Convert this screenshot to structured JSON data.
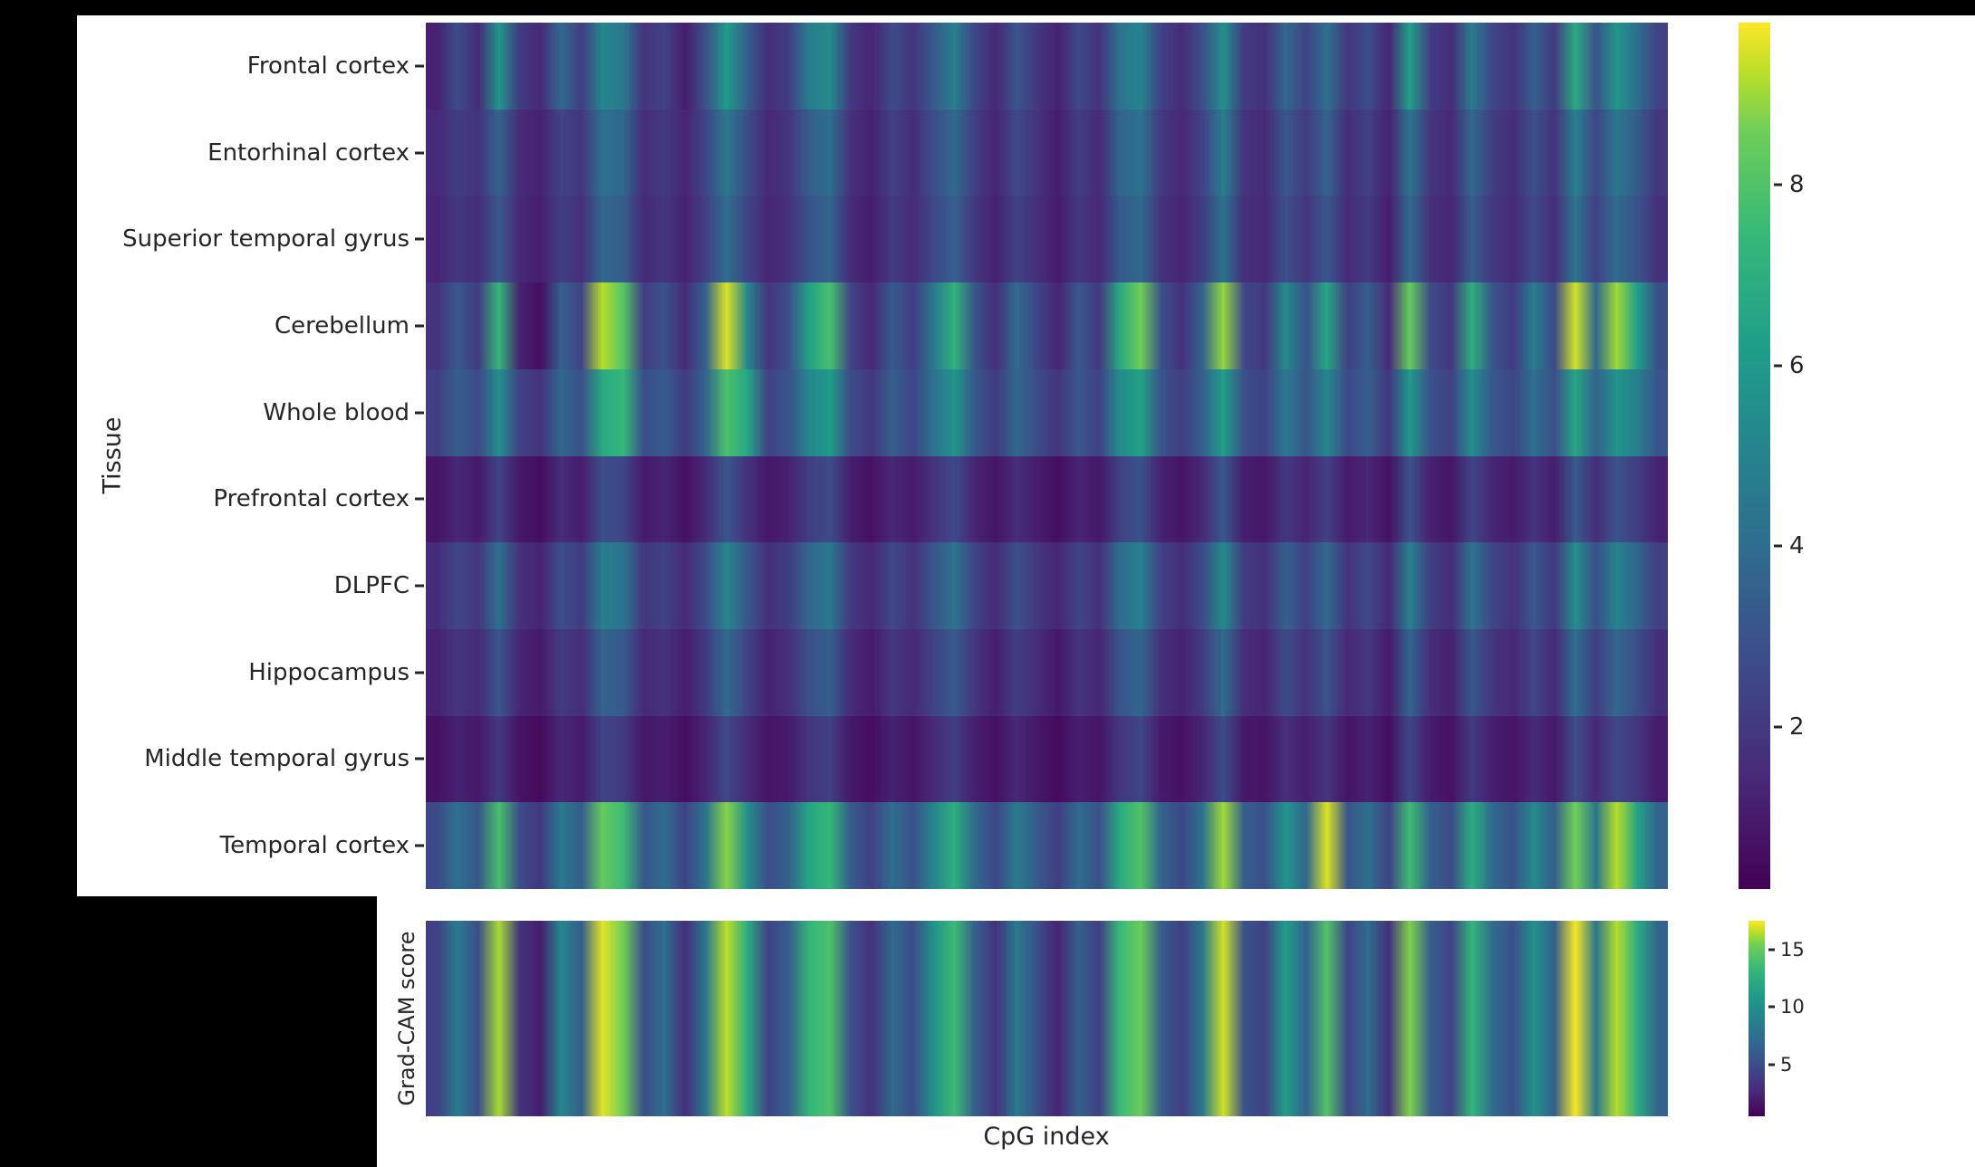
{
  "figure": {
    "background": "#ffffff",
    "page_background": "#000000",
    "text_color": "#262626"
  },
  "colormap_stops": [
    [
      0.0,
      "#440154"
    ],
    [
      0.125,
      "#482878"
    ],
    [
      0.25,
      "#3e4989"
    ],
    [
      0.375,
      "#31688e"
    ],
    [
      0.5,
      "#26828e"
    ],
    [
      0.625,
      "#1f9e89"
    ],
    [
      0.75,
      "#35b779"
    ],
    [
      0.875,
      "#6ece58"
    ],
    [
      0.9375,
      "#b5de2b"
    ],
    [
      1.0,
      "#fde725"
    ]
  ],
  "chart_data": [
    {
      "type": "heatmap",
      "name": "tissue-by-cpg-heatmap",
      "title": "",
      "xlabel": "",
      "ylabel": "Tissue",
      "colormap": "viridis",
      "vmin": 0.2,
      "vmax": 9.8,
      "colorbar_ticks": [
        8,
        6,
        4,
        2
      ],
      "rows": [
        "Frontal cortex",
        "Entorhinal cortex",
        "Superior temporal gyrus",
        "Cerebellum",
        "Whole blood",
        "Prefrontal cortex",
        "DLPFC",
        "Hippocampus",
        "Middle temporal gyrus",
        "Temporal cortex"
      ],
      "n_columns": 60,
      "x_tick_labels": [],
      "values": [
        [
          1.2,
          2.8,
          1.5,
          5.8,
          2.1,
          1.4,
          3.9,
          2.2,
          5.2,
          4.6,
          1.8,
          2.4,
          1.1,
          2.9,
          6.1,
          3.4,
          1.6,
          2.2,
          4.8,
          5.4,
          2.0,
          1.3,
          2.7,
          1.9,
          3.3,
          4.9,
          2.5,
          1.4,
          3.1,
          2.0,
          1.2,
          2.6,
          1.8,
          4.4,
          5.1,
          2.3,
          1.5,
          2.9,
          5.6,
          2.1,
          1.7,
          3.8,
          2.4,
          4.2,
          1.9,
          2.8,
          1.3,
          6.3,
          2.2,
          1.6,
          4.7,
          2.5,
          1.8,
          3.5,
          2.1,
          6.8,
          3.0,
          5.9,
          4.1,
          2.3
        ],
        [
          1.4,
          2.2,
          1.8,
          3.6,
          1.5,
          1.2,
          2.4,
          1.9,
          4.2,
          3.8,
          1.6,
          2.1,
          1.3,
          2.5,
          4.6,
          2.8,
          1.4,
          1.9,
          3.4,
          4.1,
          1.7,
          1.2,
          2.3,
          1.6,
          2.8,
          3.9,
          2.2,
          1.3,
          2.6,
          1.8,
          1.1,
          2.2,
          1.5,
          3.7,
          4.3,
          2.0,
          1.4,
          2.4,
          4.8,
          1.8,
          1.5,
          3.2,
          2.1,
          3.6,
          1.6,
          2.3,
          1.2,
          4.4,
          1.9,
          1.4,
          3.8,
          2.2,
          1.6,
          2.9,
          1.8,
          4.9,
          2.5,
          4.5,
          3.3,
          1.9
        ],
        [
          1.3,
          2.0,
          1.6,
          3.2,
          1.4,
          1.1,
          2.2,
          1.7,
          3.8,
          3.4,
          1.5,
          1.9,
          1.2,
          2.3,
          4.1,
          2.5,
          1.3,
          1.8,
          3.0,
          3.6,
          1.6,
          1.1,
          2.1,
          1.5,
          2.6,
          3.5,
          2.0,
          1.2,
          2.4,
          1.7,
          1.0,
          2.0,
          1.4,
          3.3,
          3.9,
          1.8,
          1.3,
          2.2,
          4.3,
          1.7,
          1.4,
          2.9,
          1.9,
          3.2,
          1.5,
          2.1,
          1.1,
          3.9,
          1.7,
          1.3,
          3.4,
          2.0,
          1.5,
          2.6,
          1.6,
          4.4,
          2.3,
          4.0,
          3.0,
          1.7
        ],
        [
          1.8,
          3.2,
          2.1,
          7.4,
          1.2,
          0.6,
          3.5,
          2.4,
          9.2,
          8.1,
          2.2,
          3.0,
          1.5,
          3.6,
          9.5,
          5.2,
          1.9,
          2.8,
          6.4,
          7.8,
          2.4,
          1.4,
          3.3,
          2.2,
          4.6,
          7.2,
          3.1,
          1.6,
          4.0,
          2.5,
          1.3,
          3.2,
          2.0,
          6.8,
          8.6,
          2.9,
          1.7,
          3.6,
          8.9,
          2.6,
          2.0,
          5.4,
          3.0,
          6.6,
          2.3,
          3.4,
          1.5,
          8.4,
          2.7,
          1.9,
          7.0,
          3.1,
          2.1,
          4.8,
          2.6,
          9.4,
          3.8,
          9.0,
          6.2,
          2.8
        ],
        [
          2.2,
          3.4,
          2.6,
          5.6,
          2.3,
          1.8,
          3.8,
          2.9,
          6.8,
          7.4,
          2.8,
          3.3,
          2.1,
          3.7,
          7.9,
          6.6,
          2.4,
          3.0,
          5.2,
          6.1,
          2.7,
          2.0,
          3.4,
          2.5,
          4.2,
          5.8,
          3.2,
          2.1,
          3.8,
          2.7,
          1.9,
          3.2,
          2.4,
          5.4,
          6.4,
          3.0,
          2.2,
          3.5,
          6.2,
          2.8,
          2.4,
          4.6,
          3.1,
          5.2,
          2.6,
          3.4,
          2.0,
          6.0,
          2.9,
          2.3,
          5.5,
          3.2,
          2.5,
          4.2,
          2.8,
          6.6,
          3.6,
          5.8,
          4.8,
          3.0
        ],
        [
          0.8,
          1.4,
          1.0,
          2.4,
          0.9,
          0.6,
          1.6,
          1.1,
          2.8,
          2.5,
          1.0,
          1.3,
          0.7,
          1.5,
          3.1,
          1.8,
          0.9,
          1.2,
          2.2,
          2.7,
          1.1,
          0.7,
          1.4,
          1.0,
          1.8,
          2.6,
          1.3,
          0.8,
          1.6,
          1.1,
          0.6,
          1.3,
          0.9,
          2.4,
          2.9,
          1.2,
          0.8,
          1.5,
          3.2,
          1.1,
          0.9,
          2.0,
          1.3,
          2.3,
          1.0,
          1.4,
          0.7,
          2.9,
          1.2,
          0.8,
          2.5,
          1.3,
          1.0,
          1.8,
          1.1,
          3.3,
          1.6,
          3.0,
          2.2,
          1.2
        ],
        [
          1.6,
          2.5,
          1.9,
          4.2,
          1.7,
          1.3,
          2.8,
          2.1,
          4.8,
          4.4,
          1.9,
          2.4,
          1.5,
          2.7,
          5.2,
          3.2,
          1.7,
          2.2,
          3.8,
          4.5,
          2.0,
          1.4,
          2.6,
          1.8,
          3.1,
          4.3,
          2.4,
          1.5,
          2.9,
          2.0,
          1.3,
          2.5,
          1.7,
          4.1,
          4.9,
          2.3,
          1.6,
          2.7,
          5.4,
          2.1,
          1.7,
          3.5,
          2.3,
          3.9,
          1.8,
          2.6,
          1.4,
          5.0,
          2.2,
          1.6,
          4.3,
          2.5,
          1.8,
          3.2,
          2.0,
          5.5,
          2.8,
          5.1,
          3.7,
          2.2
        ],
        [
          1.2,
          1.9,
          1.5,
          3.1,
          1.3,
          1.0,
          2.1,
          1.6,
          3.6,
          3.3,
          1.4,
          1.8,
          1.1,
          2.1,
          3.9,
          2.4,
          1.2,
          1.7,
          2.9,
          3.4,
          1.5,
          1.0,
          2.0,
          1.4,
          2.4,
          3.3,
          1.9,
          1.1,
          2.2,
          1.6,
          0.9,
          1.9,
          1.3,
          3.1,
          3.7,
          1.7,
          1.2,
          2.1,
          4.0,
          1.6,
          1.3,
          2.7,
          1.8,
          3.0,
          1.4,
          2.0,
          1.0,
          3.7,
          1.6,
          1.2,
          3.2,
          1.9,
          1.4,
          2.5,
          1.5,
          4.1,
          2.2,
          3.8,
          2.8,
          1.6
        ],
        [
          0.7,
          1.2,
          0.9,
          2.0,
          0.8,
          0.5,
          1.4,
          1.0,
          2.4,
          2.1,
          0.9,
          1.1,
          0.6,
          1.3,
          2.6,
          1.5,
          0.8,
          1.0,
          1.9,
          2.3,
          0.9,
          0.6,
          1.2,
          0.8,
          1.5,
          2.2,
          1.1,
          0.7,
          1.4,
          0.9,
          0.5,
          1.1,
          0.8,
          2.0,
          2.5,
          1.0,
          0.7,
          1.3,
          2.7,
          0.9,
          0.8,
          1.7,
          1.1,
          1.9,
          0.8,
          1.2,
          0.6,
          2.5,
          1.0,
          0.7,
          2.1,
          1.1,
          0.8,
          1.5,
          0.9,
          2.8,
          1.4,
          2.6,
          1.9,
          1.0
        ],
        [
          2.6,
          4.2,
          3.1,
          7.8,
          2.7,
          2.0,
          4.6,
          3.4,
          8.4,
          7.6,
          3.2,
          4.0,
          2.4,
          4.4,
          8.8,
          5.6,
          2.8,
          3.6,
          6.6,
          7.4,
          3.3,
          2.3,
          4.1,
          3.0,
          5.2,
          7.0,
          3.9,
          2.5,
          4.7,
          3.3,
          2.2,
          4.0,
          2.9,
          6.8,
          8.0,
          3.6,
          2.6,
          4.3,
          9.0,
          3.4,
          2.9,
          5.8,
          3.8,
          9.5,
          3.1,
          4.2,
          2.4,
          7.6,
          3.5,
          2.7,
          6.9,
          3.9,
          3.0,
          5.4,
          3.4,
          8.6,
          4.5,
          9.2,
          6.4,
          3.6
        ]
      ]
    },
    {
      "type": "heatmap",
      "name": "gradcam-score-strip",
      "title": "",
      "xlabel": "CpG index",
      "ylabel": "Grad-CAM score",
      "colormap": "viridis",
      "vmin": 0.5,
      "vmax": 17.5,
      "colorbar_ticks": [
        15,
        10,
        5
      ],
      "rows": [
        "Grad-CAM score"
      ],
      "n_columns": 60,
      "x_tick_labels": [],
      "values": [
        [
          4.2,
          8.5,
          5.1,
          16.2,
          3.4,
          2.1,
          9.3,
          6.2,
          17.1,
          15.4,
          5.2,
          7.4,
          3.1,
          8.2,
          16.5,
          12.3,
          4.4,
          6.1,
          13.2,
          14.1,
          5.3,
          3.2,
          7.1,
          5.0,
          10.4,
          13.5,
          6.3,
          3.3,
          8.4,
          5.2,
          2.4,
          6.4,
          4.2,
          13.4,
          15.2,
          6.1,
          4.1,
          8.3,
          16.8,
          5.4,
          4.3,
          11.2,
          6.4,
          14.3,
          4.5,
          7.2,
          3.2,
          15.6,
          6.2,
          4.4,
          13.1,
          7.3,
          5.3,
          10.2,
          6.3,
          17.4,
          8.1,
          16.4,
          12.2,
          6.5
        ]
      ]
    }
  ]
}
